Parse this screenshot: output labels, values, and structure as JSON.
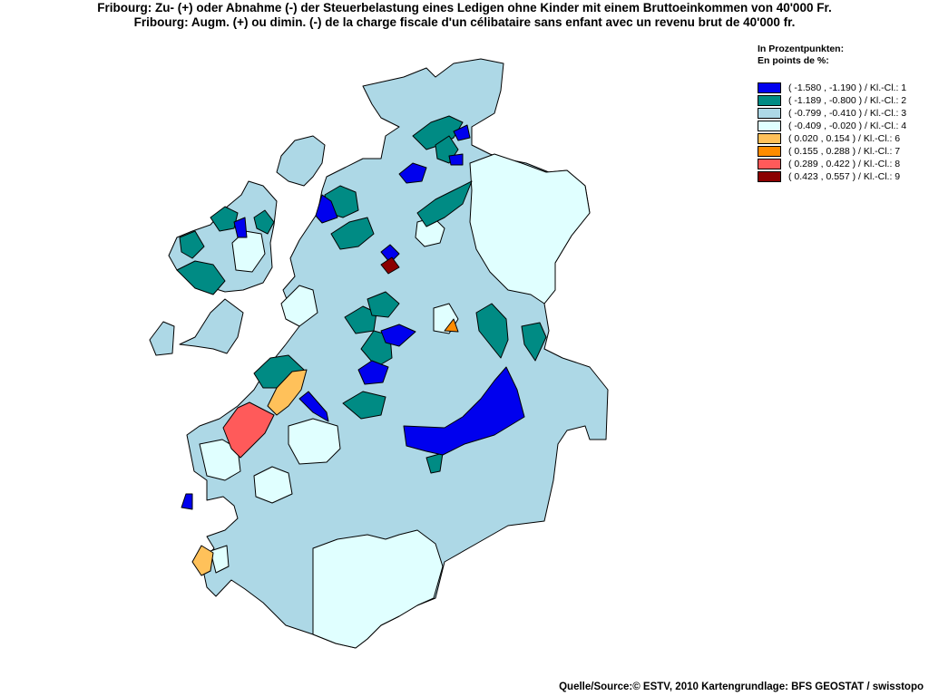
{
  "title": {
    "de": "Fribourg: Zu- (+) oder Abnahme (-) der Steuerbelastung eines Ledigen ohne Kinder mit einem Bruttoeinkommen von 40'000 Fr.",
    "fr": "Fribourg: Augm. (+) ou dimin. (-) de la charge fiscale d'un célibataire sans enfant avec un revenu brut de 40'000 fr."
  },
  "legend": {
    "heading_de": "In Prozentpunkten:",
    "heading_fr": "En points de %:",
    "classes": [
      {
        "label": "( -1.580 , -1.190 ) / Kl.-Cl.: 1",
        "color": "#0000ee"
      },
      {
        "label": "( -1.189 , -0.800 ) / Kl.-Cl.: 2",
        "color": "#008b84"
      },
      {
        "label": "( -0.799 , -0.410 ) / Kl.-Cl.: 3",
        "color": "#add8e6"
      },
      {
        "label": "( -0.409 , -0.020 ) / Kl.-Cl.: 4",
        "color": "#e0ffff"
      },
      {
        "label": "( 0.020 , 0.154 ) / Kl.-Cl.: 6",
        "color": "#ffc15a"
      },
      {
        "label": "( 0.155 , 0.288 ) / Kl.-Cl.: 7",
        "color": "#ff8c00"
      },
      {
        "label": "( 0.289 , 0.422 ) / Kl.-Cl.: 8",
        "color": "#ff5a5a"
      },
      {
        "label": "( 0.423 , 0.557 ) / Kl.-Cl.: 9",
        "color": "#8b0000"
      }
    ]
  },
  "source": "Quelle/Source:© ESTV, 2010 Kartengrundlage: BFS GEOSTAT / swisstopo"
}
